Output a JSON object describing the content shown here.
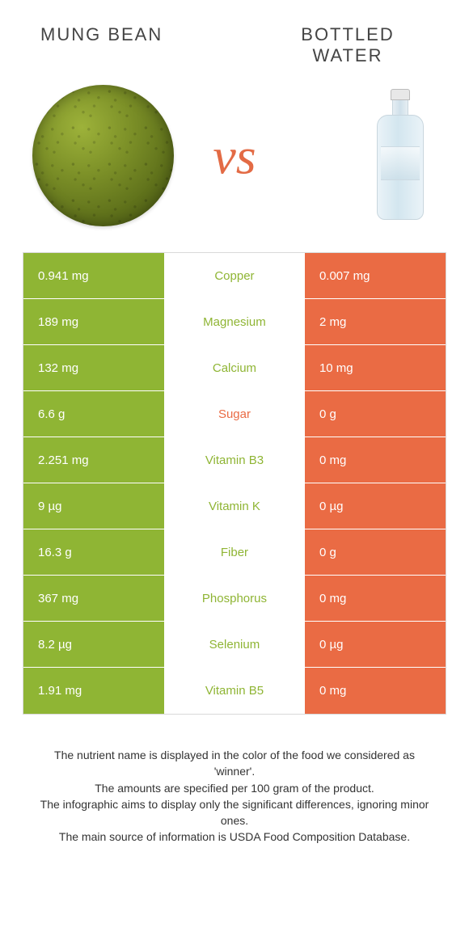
{
  "titles": {
    "left": "Mung bean",
    "right": "Bottled water"
  },
  "vs_label": "vs",
  "colors": {
    "left": "#8fb534",
    "right": "#ea6b44",
    "nutrient_default": "#8fb534",
    "nutrient_sugar": "#ea6b44",
    "border": "#d9d9d9"
  },
  "rows": [
    {
      "nutrient": "Copper",
      "left": "0.941 mg",
      "right": "0.007 mg",
      "nutrient_color": "#8fb534"
    },
    {
      "nutrient": "Magnesium",
      "left": "189 mg",
      "right": "2 mg",
      "nutrient_color": "#8fb534"
    },
    {
      "nutrient": "Calcium",
      "left": "132 mg",
      "right": "10 mg",
      "nutrient_color": "#8fb534"
    },
    {
      "nutrient": "Sugar",
      "left": "6.6 g",
      "right": "0 g",
      "nutrient_color": "#ea6b44"
    },
    {
      "nutrient": "Vitamin B3",
      "left": "2.251 mg",
      "right": "0 mg",
      "nutrient_color": "#8fb534"
    },
    {
      "nutrient": "Vitamin K",
      "left": "9 µg",
      "right": "0 µg",
      "nutrient_color": "#8fb534"
    },
    {
      "nutrient": "Fiber",
      "left": "16.3 g",
      "right": "0 g",
      "nutrient_color": "#8fb534"
    },
    {
      "nutrient": "Phosphorus",
      "left": "367 mg",
      "right": "0 mg",
      "nutrient_color": "#8fb534"
    },
    {
      "nutrient": "Selenium",
      "left": "8.2 µg",
      "right": "0 µg",
      "nutrient_color": "#8fb534"
    },
    {
      "nutrient": "Vitamin B5",
      "left": "1.91 mg",
      "right": "0 mg",
      "nutrient_color": "#8fb534"
    }
  ],
  "footer": {
    "l1": "The nutrient name is displayed in the color of the food we considered as 'winner'.",
    "l2": "The amounts are specified per 100 gram of the product.",
    "l3": "The infographic aims to display only the significant differences, ignoring minor ones.",
    "l4": "The main source of information is USDA Food Composition Database."
  }
}
